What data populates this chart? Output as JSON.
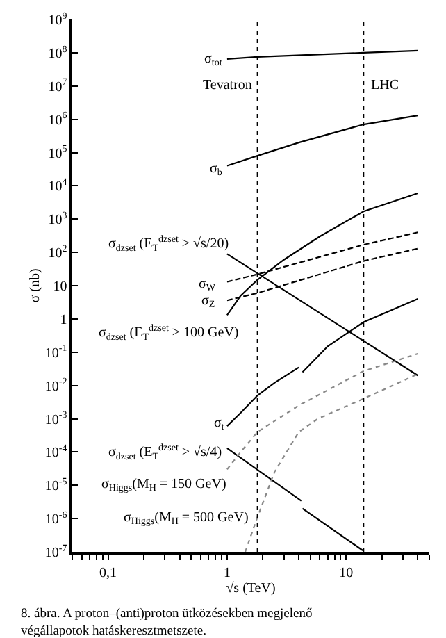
{
  "chart_data": {
    "type": "line",
    "xlabel": "√s (TeV)",
    "ylabel": "σ (nb)",
    "log": "xy",
    "legend": false,
    "marker": "none",
    "xlim": [
      0.05,
      50
    ],
    "ylim": [
      1e-07,
      1000000000.0
    ],
    "xticks": [
      {
        "value": 0.05,
        "label": null
      },
      {
        "value": 0.06,
        "label": null
      },
      {
        "value": 0.07,
        "label": null
      },
      {
        "value": 0.08,
        "label": null
      },
      {
        "value": 0.09,
        "label": null
      },
      {
        "value": 0.1,
        "label": "0,1"
      },
      {
        "value": 0.2,
        "label": null
      },
      {
        "value": 0.3,
        "label": null
      },
      {
        "value": 0.4,
        "label": null
      },
      {
        "value": 0.5,
        "label": null
      },
      {
        "value": 0.6,
        "label": null
      },
      {
        "value": 0.7,
        "label": null
      },
      {
        "value": 0.8,
        "label": null
      },
      {
        "value": 0.9,
        "label": null
      },
      1,
      {
        "value": 2,
        "label": null
      },
      {
        "value": 3,
        "label": null
      },
      {
        "value": 4,
        "label": null
      },
      {
        "value": 5,
        "label": null
      },
      {
        "value": 6,
        "label": null
      },
      {
        "value": 7,
        "label": null
      },
      {
        "value": 8,
        "label": null
      },
      {
        "value": 9,
        "label": null
      },
      10,
      {
        "value": 20,
        "label": null
      },
      {
        "value": 30,
        "label": null
      },
      {
        "value": 40,
        "label": null
      },
      {
        "value": 50,
        "label": null
      }
    ],
    "yticks": [
      {
        "value": 1e-07,
        "label": "10$^{-7}$"
      },
      {
        "value": 1e-06,
        "label": "10$^{-6}$"
      },
      {
        "value": 1e-05,
        "label": "10$^{-5}$"
      },
      {
        "value": 0.0001,
        "label": "10$^{-4}$"
      },
      {
        "value": 0.001,
        "label": "10$^{-3}$"
      },
      {
        "value": 0.01,
        "label": "10$^{-2}$"
      },
      {
        "value": 0.1,
        "label": "10$^{-1}$"
      },
      1,
      10,
      {
        "value": 100,
        "label": "10$^{2}$"
      },
      {
        "value": 1000,
        "label": "10$^{3}$"
      },
      {
        "value": 10000.0,
        "label": "10$^{4}$"
      },
      {
        "value": 100000.0,
        "label": "10$^{5}$"
      },
      {
        "value": 1000000.0,
        "label": "10$^{6}$"
      },
      {
        "value": 10000000.0,
        "label": "10$^{7}$"
      },
      {
        "value": 100000000.0,
        "label": "10$^{8}$"
      },
      {
        "value": 1000000000.0,
        "label": "10$^{9}$"
      }
    ],
    "series": [
      {
        "name": "σ$_{tot}$",
        "color": "#000000",
        "line_style": "solid",
        "x": [
          1,
          1.8,
          14,
          40
        ],
        "values": [
          65000000.0,
          75000000.0,
          100000000.0,
          115000000.0
        ]
      },
      {
        "name": "σ$_{b}$",
        "color": "#000000",
        "line_style": "solid",
        "x": [
          1,
          1.8,
          4,
          14,
          40
        ],
        "values": [
          40000.0,
          80000.0,
          200000.0,
          700000.0,
          1300000.0
        ]
      },
      {
        "name": "σ$_{dzset}$ (E$_{T}$$^{dzset}$ > √s/20)",
        "color": "#000000",
        "line_style": "solid",
        "x": [
          1,
          40
        ],
        "values": [
          90,
          0.02
        ]
      },
      {
        "name": "σ$_{W}$",
        "color": "#000000",
        "line_style": "dashed",
        "x": [
          1,
          1.8,
          14,
          40
        ],
        "values": [
          13,
          22,
          170,
          400
        ]
      },
      {
        "name": "σ$_{Z}$",
        "color": "#000000",
        "line_style": "dashed",
        "x": [
          1,
          1.8,
          14,
          40
        ],
        "values": [
          3.6,
          6,
          55,
          130
        ]
      },
      {
        "name": "σ$_{dzset}$ (E$_{T}$$^{dzset}$ > 100 GeV)",
        "color": "#000000",
        "line_style": "solid",
        "x": [
          1,
          1.3,
          1.8,
          3,
          6,
          14,
          40
        ],
        "values": [
          1.3,
          5,
          15,
          60,
          300,
          1700,
          6000
        ]
      },
      {
        "name": "σ$_{t}$",
        "color": "#000000",
        "line_style": "solid",
        "x": [
          1,
          1.3,
          1.8,
          2.5,
          4,
          4.15,
          4.3,
          7,
          14,
          40
        ],
        "values": [
          0.0006,
          0.0015,
          0.005,
          0.012,
          0.035,
          null,
          0.025,
          0.15,
          0.8,
          4
        ]
      },
      {
        "name": "σ$_{dzset}$ (E$_{T}$$^{dzset}$ > √s/4)",
        "color": "#000000",
        "line_style": "solid",
        "x": [
          1,
          4.2,
          4.25,
          4.3,
          13.8
        ],
        "values": [
          0.00013,
          3.4e-06,
          null,
          2e-06,
          1.1e-07
        ]
      },
      {
        "name": "σ$_{Higgs}$(M$_{H}$ = 150 GeV)",
        "color": "#888888",
        "line_style": "dotted",
        "x": [
          1,
          1.3,
          1.8,
          4,
          14,
          40
        ],
        "values": [
          3e-05,
          0.0001,
          0.0004,
          0.0025,
          0.027,
          0.09
        ]
      },
      {
        "name": "σ$_{Higgs}$(M$_{H}$ = 500 GeV)",
        "color": "#888888",
        "line_style": "dotted",
        "x": [
          1.42,
          1.8,
          2.5,
          4,
          5.8,
          14,
          40
        ],
        "values": [
          1e-07,
          1.1e-06,
          2.5e-05,
          0.0004,
          0.001,
          0.004,
          0.022
        ]
      }
    ],
    "ref_lines": [
      {
        "axis": "x",
        "value": 1.8,
        "label": "Tevatron",
        "line_style": "dotted",
        "color": "#000000"
      },
      {
        "axis": "x",
        "value": 14,
        "label": "LHC",
        "line_style": "dotted",
        "color": "#000000"
      }
    ],
    "annotations": [
      "8. ábra. A proton–(anti)proton ütközésekben megjelenő végállapotok hatáskeresztmetszete."
    ]
  }
}
